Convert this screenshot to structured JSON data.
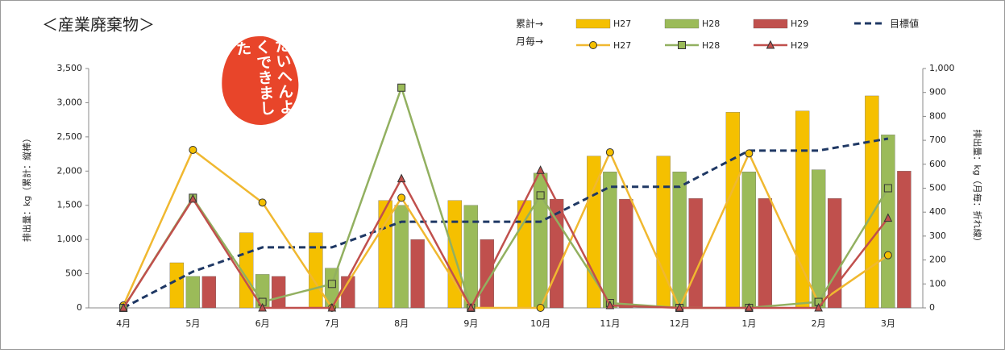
{
  "chart_data": {
    "type": "combo",
    "title": "＜産業廃棄物＞",
    "stamp": "たいへんよくできました",
    "legend_row_labels": [
      "累計→",
      "月毎→"
    ],
    "y_label": "排出量：kg（累計：縦棒）",
    "y2_label": "排出量：kg（月毎：折れ線）",
    "categories": [
      "4月",
      "5月",
      "6月",
      "7月",
      "8月",
      "9月",
      "10月",
      "11月",
      "12月",
      "1月",
      "2月",
      "3月"
    ],
    "series": [
      {
        "name": "H27",
        "type": "bar",
        "color": "#f5c000",
        "values": [
          0,
          660,
          1100,
          1100,
          1570,
          1570,
          1570,
          2220,
          2220,
          2860,
          2880,
          3100
        ]
      },
      {
        "name": "H28",
        "type": "bar",
        "color": "#9bbb59",
        "values": [
          0,
          460,
          490,
          580,
          1500,
          1500,
          1970,
          1990,
          1990,
          1990,
          2020,
          2530
        ]
      },
      {
        "name": "H29",
        "type": "bar",
        "color": "#c0504d",
        "values": [
          0,
          460,
          460,
          460,
          1000,
          1000,
          1590,
          1590,
          1600,
          1600,
          1600,
          2000
        ]
      },
      {
        "name": "目標値",
        "type": "line",
        "dash": true,
        "color": "#1f3864",
        "values": [
          0,
          530,
          885,
          885,
          1260,
          1260,
          1260,
          1770,
          1770,
          2300,
          2300,
          2475
        ]
      },
      {
        "name": "H27",
        "type": "line",
        "axis": "y2",
        "marker": "circle",
        "color": "#f0b830",
        "values": [
          10,
          660,
          440,
          0,
          460,
          0,
          0,
          650,
          0,
          645,
          20,
          220
        ]
      },
      {
        "name": "H28",
        "type": "line",
        "axis": "y2",
        "marker": "square",
        "color": "#92b060",
        "values": [
          0,
          460,
          25,
          100,
          920,
          0,
          470,
          20,
          0,
          0,
          25,
          500
        ]
      },
      {
        "name": "H29",
        "type": "line",
        "axis": "y2",
        "marker": "triangle",
        "color": "#c0504d",
        "values": [
          0,
          455,
          0,
          0,
          540,
          0,
          575,
          10,
          0,
          0,
          0,
          375
        ]
      }
    ],
    "ylim": [
      0,
      3500
    ],
    "yticks": [
      0,
      500,
      {
        "value": 1000,
        "label": "1,000"
      },
      {
        "value": 1500,
        "label": "1,500"
      },
      {
        "value": 2000,
        "label": "2,000"
      },
      {
        "value": 2500,
        "label": "2,500"
      },
      {
        "value": 3000,
        "label": "3,000"
      },
      {
        "value": 3500,
        "label": "3,500"
      }
    ],
    "y2lim": [
      0,
      1000
    ],
    "y2ticks": [
      0,
      100,
      200,
      300,
      400,
      500,
      600,
      700,
      800,
      900,
      {
        "value": 1000,
        "label": "1,000"
      }
    ]
  }
}
